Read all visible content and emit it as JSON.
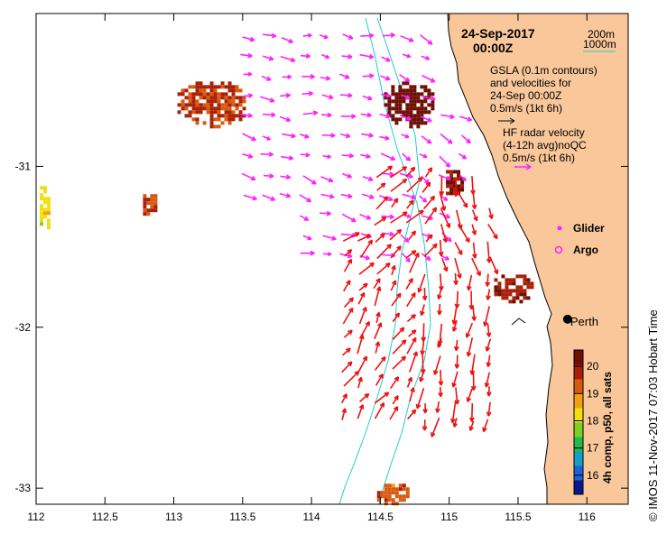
{
  "title": {
    "date": "24-Sep-2017",
    "time": "00:00Z"
  },
  "depth_legend": {
    "shallow": "200m",
    "deep": "1000m",
    "color": "#22cccc"
  },
  "legend": {
    "gsla_lines": [
      "GSLA (0.1m contours)",
      "and velocities for",
      "24-Sep 00:00Z",
      "0.5m/s (1kt 6h)"
    ],
    "hf_lines": [
      "HF radar velocity",
      "(4-12h avg)noQC",
      "0.5m/s (1kt 6h)"
    ],
    "glider": "Glider",
    "argo": "Argo"
  },
  "place": {
    "name": "Perth",
    "lon": 115.86,
    "lat": -31.95
  },
  "axes": {
    "x_ticks": [
      "112",
      "112.5",
      "113",
      "113.5",
      "114",
      "114.5",
      "115",
      "115.5",
      "116"
    ],
    "x_values": [
      112,
      112.5,
      113,
      113.5,
      114,
      114.5,
      115,
      115.5,
      116
    ],
    "y_ticks": [
      "-31",
      "-32",
      "-33"
    ],
    "y_values": [
      -31,
      -32,
      -33
    ],
    "xlim": [
      112,
      116.3
    ],
    "ylim": [
      -33.1,
      -30.05
    ]
  },
  "colorbar": {
    "label": "4h comp, p50, all sats",
    "ticks": [
      "16",
      "17",
      "18",
      "19",
      "20"
    ],
    "range": [
      15.3,
      20.6
    ],
    "colors": [
      "#0a1a8c",
      "#1e60d8",
      "#12a0c8",
      "#22b84a",
      "#7ad020",
      "#f0e010",
      "#f0a010",
      "#d85a10",
      "#a82008",
      "#6e0e04"
    ]
  },
  "credit": "© IMOS 11-Nov-2017 07:03 Hobart Time",
  "colors": {
    "land": "#f9c79a",
    "hf_radar": "#ff22ff",
    "gsla": "#ee1111"
  },
  "sst_patches": [
    {
      "lon": [
        113.0,
        113.55
      ],
      "lat": [
        -30.75,
        -30.45
      ],
      "value": 19.6
    },
    {
      "lon": [
        114.5,
        114.9
      ],
      "lat": [
        -30.75,
        -30.45
      ],
      "value": 20.4
    },
    {
      "lon": [
        114.95,
        115.1
      ],
      "lat": [
        -31.18,
        -31.0
      ],
      "value": 20.2
    },
    {
      "lon": [
        115.3,
        115.6
      ],
      "lat": [
        -31.85,
        -31.65
      ],
      "value": 19.9
    },
    {
      "lon": [
        112.75,
        112.88
      ],
      "lat": [
        -31.3,
        -31.15
      ],
      "value": 19.5
    },
    {
      "lon": [
        114.45,
        114.7
      ],
      "lat": [
        -33.1,
        -32.95
      ],
      "value": 19.3
    },
    {
      "lon": [
        112.0,
        112.1
      ],
      "lat": [
        -31.4,
        -31.1
      ],
      "value": 18.2
    }
  ]
}
